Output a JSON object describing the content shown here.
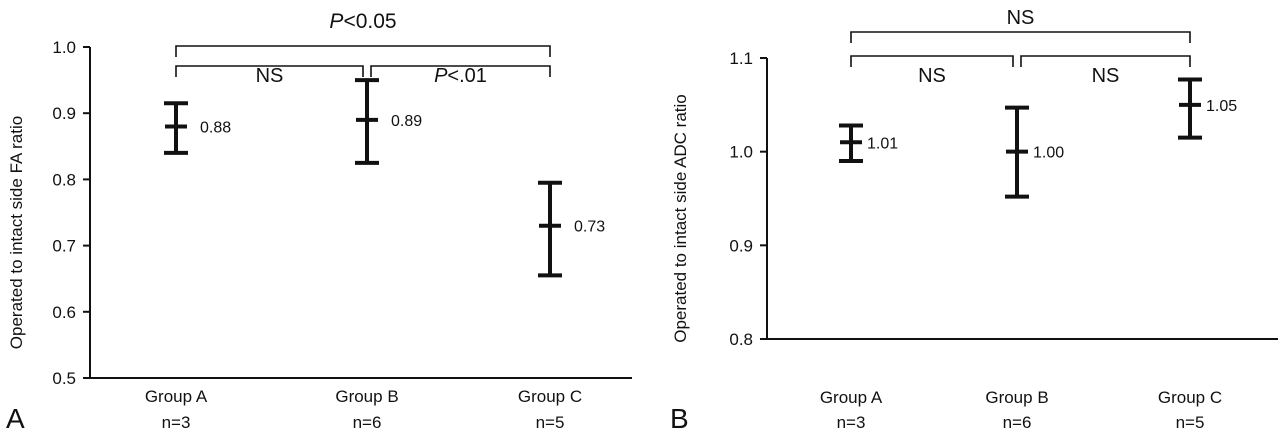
{
  "chart_data": [
    {
      "type": "errorbar",
      "panel_label": "A",
      "ylabel": "Operated to intact side FA ratio",
      "ylim": [
        0.5,
        1.0
      ],
      "yticks": [
        "0.5",
        "0.6",
        "0.7",
        "0.8",
        "0.9",
        "1.0"
      ],
      "categories": [
        "Group A",
        "Group B",
        "Group C"
      ],
      "sample_sizes": [
        "n=3",
        "n=6",
        "n=5"
      ],
      "values": [
        0.88,
        0.89,
        0.73
      ],
      "value_labels": [
        "0.88",
        "0.89",
        "0.73"
      ],
      "lower": [
        0.84,
        0.825,
        0.655
      ],
      "upper": [
        0.915,
        0.95,
        0.795
      ],
      "comparisons": [
        {
          "from": 0,
          "to": 2,
          "prefix": "P",
          "rest": "<0.05"
        },
        {
          "from": 0,
          "to": 1,
          "prefix": "",
          "rest": "NS"
        },
        {
          "from": 1,
          "to": 2,
          "prefix": "P",
          "rest": "<.01"
        }
      ]
    },
    {
      "type": "errorbar",
      "panel_label": "B",
      "ylabel": "Operated to intact side ADC ratio",
      "ylim": [
        0.8,
        1.1
      ],
      "yticks": [
        "0.8",
        "0.9",
        "1.0",
        "1.1"
      ],
      "categories": [
        "Group A",
        "Group B",
        "Group C"
      ],
      "sample_sizes": [
        "n=3",
        "n=6",
        "n=5"
      ],
      "values": [
        1.01,
        1.0,
        1.05
      ],
      "value_labels": [
        "1.01",
        "1.00",
        "1.05"
      ],
      "lower": [
        0.99,
        0.952,
        1.015
      ],
      "upper": [
        1.028,
        1.047,
        1.077
      ],
      "comparisons": [
        {
          "from": 0,
          "to": 2,
          "prefix": "",
          "rest": "NS"
        },
        {
          "from": 0,
          "to": 1,
          "prefix": "",
          "rest": "NS"
        },
        {
          "from": 1,
          "to": 2,
          "prefix": "",
          "rest": "NS"
        }
      ]
    }
  ]
}
